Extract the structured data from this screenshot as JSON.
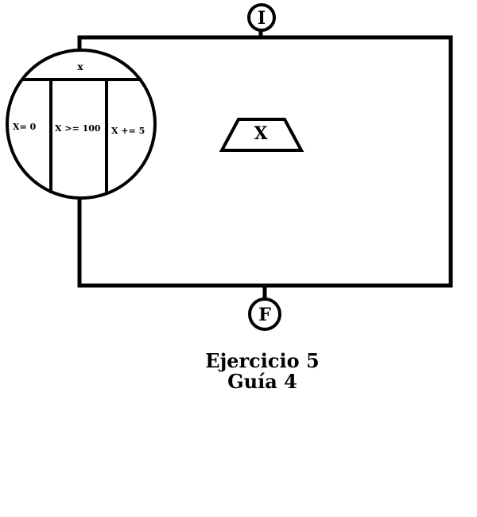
{
  "diagram": {
    "start_label": "I",
    "end_label": "F",
    "loop": {
      "variable": "x",
      "init": "X= 0",
      "condition": "X >= 100",
      "increment": "X += 5"
    },
    "output_label": "X"
  },
  "caption": {
    "line1": "Ejercicio 5",
    "line2": "Guía 4"
  },
  "colors": {
    "stroke": "#000000",
    "background": "#ffffff"
  }
}
